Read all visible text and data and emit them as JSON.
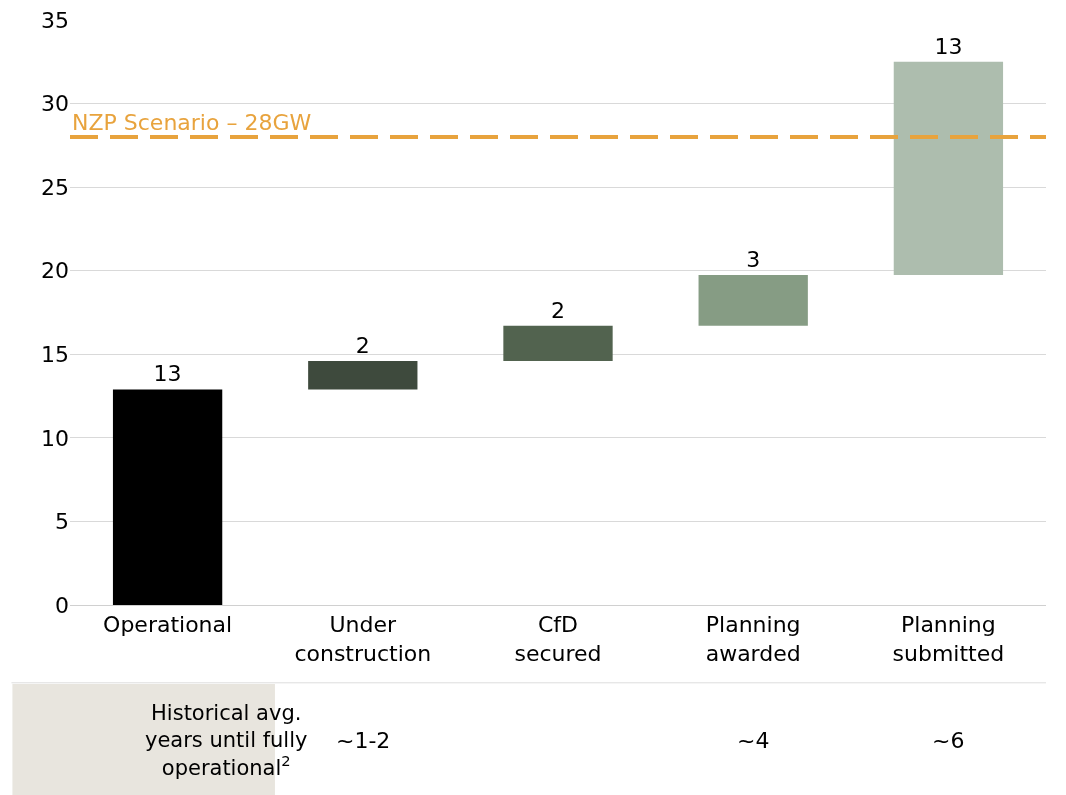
{
  "chart_data": {
    "type": "bar",
    "categories": [
      "Operational",
      "Under construction",
      "CfD secured",
      "Planning awarded",
      "Planning submitted"
    ],
    "values": [
      12.9,
      1.7,
      2.1,
      3.05,
      12.75
    ],
    "base": [
      0,
      12.9,
      14.6,
      16.7,
      19.75
    ],
    "colors": [
      "#000000",
      "#3e4a3d",
      "#52634f",
      "#869c84",
      "#adbdae"
    ],
    "value_labels": [
      "13",
      "2",
      "2",
      "3",
      "13"
    ],
    "ylim": [
      0,
      35
    ],
    "yticks": [
      0,
      5,
      10,
      15,
      20,
      25,
      30,
      35
    ],
    "grid": "y",
    "ref_lines": [
      {
        "axis": "y",
        "value": 28,
        "label": "NZP Scenario – 28GW",
        "color": "#e8a33d",
        "line_style": "dashed"
      }
    ],
    "annotations": [
      "Historical avg. years until fully operational$^{2}$",
      "~1-2",
      "~4",
      "~6"
    ]
  }
}
